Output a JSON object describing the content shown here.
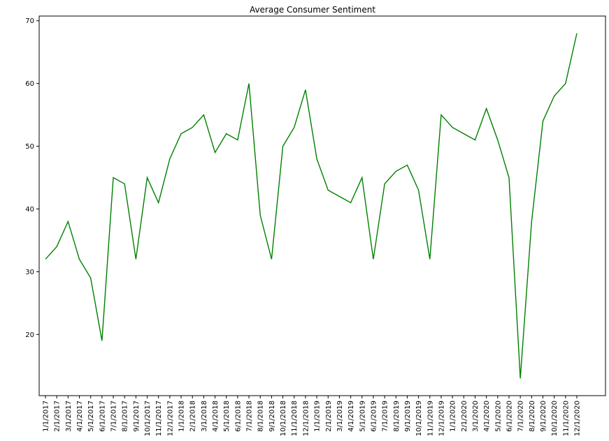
{
  "chart_data": {
    "type": "line",
    "title": "Average Consumer Sentiment",
    "xlabel": "",
    "ylabel": "",
    "categories": [
      "1/1/2017",
      "2/1/2017",
      "3/1/2017",
      "4/1/2017",
      "5/1/2017",
      "6/1/2017",
      "7/1/2017",
      "8/1/2017",
      "9/1/2017",
      "10/1/2017",
      "11/1/2017",
      "12/1/2017",
      "1/1/2018",
      "2/1/2018",
      "3/1/2018",
      "4/1/2018",
      "5/1/2018",
      "6/1/2018",
      "7/1/2018",
      "8/1/2018",
      "9/1/2018",
      "10/1/2018",
      "11/1/2018",
      "12/1/2018",
      "1/1/2019",
      "2/1/2019",
      "3/1/2019",
      "4/1/2019",
      "5/1/2019",
      "6/1/2019",
      "7/1/2019",
      "8/1/2019",
      "9/1/2019",
      "10/1/2019",
      "11/1/2019",
      "12/1/2019",
      "1/1/2020",
      "2/1/2020",
      "3/1/2020",
      "4/1/2020",
      "5/1/2020",
      "6/1/2020",
      "7/1/2020",
      "8/1/2020",
      "9/1/2020",
      "10/1/2020",
      "11/1/2020",
      "12/1/2020"
    ],
    "series": [
      {
        "values": [
          32,
          34,
          38,
          32,
          29,
          19,
          45,
          44,
          32,
          45,
          41,
          48,
          52,
          53,
          55,
          49,
          52,
          51,
          60,
          39,
          32,
          50,
          53,
          59,
          48,
          43,
          42,
          41,
          45,
          32,
          44,
          46,
          47,
          43,
          32,
          55,
          53,
          52,
          51,
          56,
          51,
          45,
          13,
          38,
          54,
          58,
          60,
          68
        ],
        "color": "#008000"
      }
    ],
    "yticks": [
      20,
      30,
      40,
      50,
      60,
      70
    ],
    "ylim": [
      10.25,
      70.75
    ],
    "grid": false,
    "legend": "none"
  }
}
